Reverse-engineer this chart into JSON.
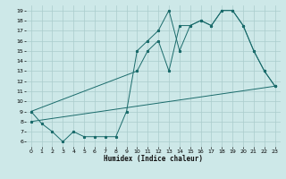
{
  "xlabel": "Humidex (Indice chaleur)",
  "bg_color": "#cde8e8",
  "grid_color": "#aacccc",
  "line_color": "#1a6b6b",
  "xlim": [
    -0.5,
    23.5
  ],
  "ylim": [
    5.5,
    19.5
  ],
  "xticks": [
    0,
    1,
    2,
    3,
    4,
    5,
    6,
    7,
    8,
    9,
    10,
    11,
    12,
    13,
    14,
    15,
    16,
    17,
    18,
    19,
    20,
    21,
    22,
    23
  ],
  "yticks": [
    6,
    7,
    8,
    9,
    10,
    11,
    12,
    13,
    14,
    15,
    16,
    17,
    18,
    19
  ],
  "series1_x": [
    0,
    1,
    2,
    3,
    4,
    5,
    6,
    7,
    8,
    9,
    10,
    11,
    12,
    13,
    14,
    15,
    16,
    17,
    18,
    19,
    20,
    21,
    22,
    23
  ],
  "series1_y": [
    9.0,
    7.8,
    7.0,
    6.0,
    7.0,
    6.5,
    6.5,
    6.5,
    6.5,
    9.0,
    15.0,
    16.0,
    17.0,
    19.0,
    15.0,
    17.5,
    18.0,
    17.5,
    19.0,
    19.0,
    17.5,
    15.0,
    13.0,
    11.5
  ],
  "series2_x": [
    0,
    10,
    11,
    12,
    13,
    14,
    15,
    16,
    17,
    18,
    19,
    20,
    21,
    22,
    23
  ],
  "series2_y": [
    9.0,
    13.0,
    15.0,
    16.0,
    13.0,
    17.5,
    17.5,
    18.0,
    17.5,
    19.0,
    19.0,
    17.5,
    15.0,
    13.0,
    11.5
  ],
  "series3_x": [
    0,
    23
  ],
  "series3_y": [
    8.0,
    11.5
  ]
}
